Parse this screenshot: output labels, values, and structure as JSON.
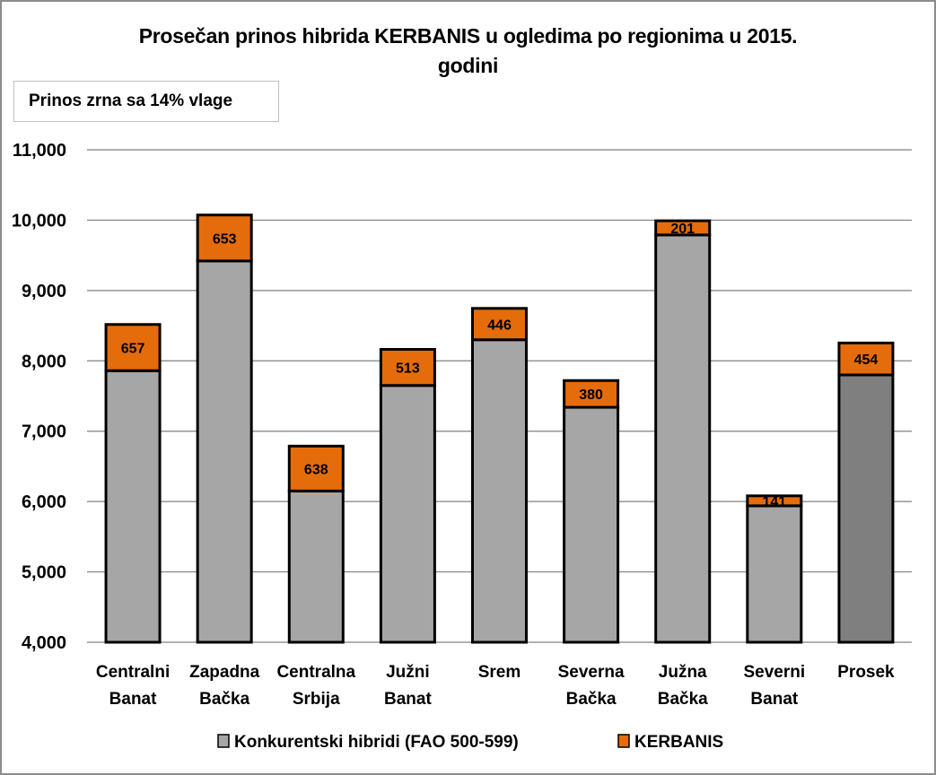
{
  "chart_data": {
    "type": "bar",
    "stacked": true,
    "title": "Prosečan prinos hibrida KERBANIS u ogledima po regionima u 2015. godini",
    "title_lines": [
      "Prosečan prinos hibrida KERBANIS u ogledima po regionima u 2015.",
      "godini"
    ],
    "annotation": "Prinos zrna sa 14% vlage",
    "xlabel": "",
    "ylabel": "",
    "ylim": [
      4000,
      11000
    ],
    "yticks": [
      4000,
      5000,
      6000,
      7000,
      8000,
      9000,
      10000,
      11000
    ],
    "ytick_labels": [
      "4,000",
      "5,000",
      "6,000",
      "7,000",
      "8,000",
      "9,000",
      "10,000",
      "11,000"
    ],
    "grid": true,
    "legend_position": "bottom",
    "categories": [
      [
        "Centralni",
        "Banat"
      ],
      [
        "Zapadna",
        "Bačka"
      ],
      [
        "Centralna",
        "Srbija"
      ],
      [
        "Južni",
        "Banat"
      ],
      [
        "Srem"
      ],
      [
        "Severna",
        "Bačka"
      ],
      [
        "Južna",
        "Bačka"
      ],
      [
        "Severni",
        "Banat"
      ],
      [
        "Prosek"
      ]
    ],
    "series": [
      {
        "name": "Konkurentski hibridi (FAO 500-599)",
        "color": "#a6a6a6",
        "highlight_color_last": "#7f7f7f",
        "values": [
          7860,
          9420,
          6150,
          7650,
          8300,
          7340,
          9790,
          5940,
          7800
        ],
        "show_labels": false
      },
      {
        "name": "KERBANIS",
        "color": "#e46c0a",
        "values": [
          657,
          653,
          638,
          513,
          446,
          380,
          201,
          141,
          454
        ],
        "labels": [
          "657",
          "653",
          "638",
          "513",
          "446",
          "380",
          "201",
          "141",
          "454"
        ],
        "show_labels": true
      }
    ]
  }
}
